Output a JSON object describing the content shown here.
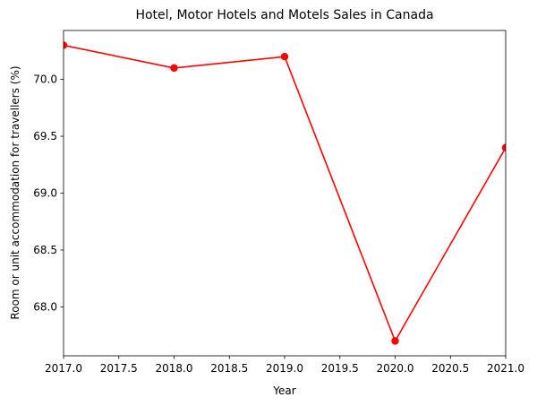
{
  "chart_data": {
    "type": "line",
    "title": "Hotel, Motor Hotels and Motels Sales in Canada",
    "xlabel": "Year",
    "ylabel": "Room or unit accommodation for travellers (%)",
    "x": [
      2017,
      2018,
      2019,
      2020,
      2021
    ],
    "series": [
      {
        "values": [
          70.3,
          70.1,
          70.2,
          67.7,
          69.4
        ],
        "color": "#ff0000",
        "marker": "circle"
      }
    ],
    "xlim": [
      2017.0,
      2021.0
    ],
    "ylim": [
      67.57,
      70.43
    ],
    "xticks": [
      "2017.0",
      "2017.5",
      "2018.0",
      "2018.5",
      "2019.0",
      "2019.5",
      "2020.0",
      "2020.5",
      "2021.0"
    ],
    "yticks": [
      "68.0",
      "68.5",
      "69.0",
      "69.5",
      "70.0"
    ],
    "grid": false,
    "legend": false
  }
}
